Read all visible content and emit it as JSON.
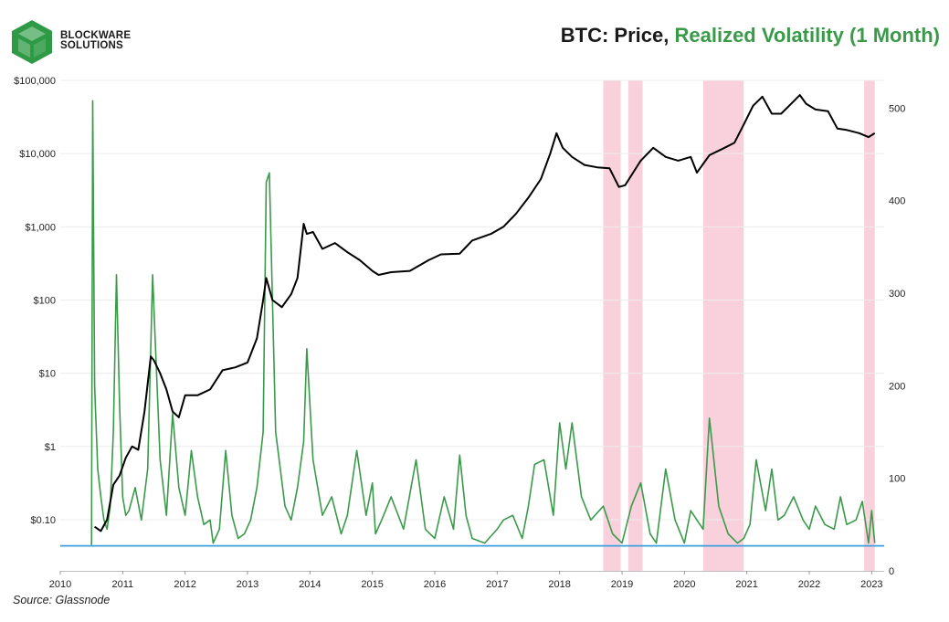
{
  "brand": {
    "line1": "BLOCKWARE",
    "line2": "SOLUTIONS",
    "logo_color": "#2f9a45"
  },
  "header": {
    "title_part1": "BTC: Price, ",
    "title_part2": "Realized Volatility (1 Month)"
  },
  "footer": {
    "source": "Source: Glassnode"
  },
  "colors": {
    "price": "#000000",
    "volatility": "#3a9a4a",
    "threshold": "#3aa0e0",
    "shade": "#f7c6d3"
  },
  "chart_data": {
    "type": "line",
    "title": "BTC: Price, Realized Volatility (1 Month)",
    "xlim": [
      2010,
      2023.2
    ],
    "x_ticks": [
      2010,
      2011,
      2012,
      2013,
      2014,
      2015,
      2016,
      2017,
      2018,
      2019,
      2020,
      2021,
      2022,
      2023
    ],
    "x_tick_labels": [
      "2010",
      "2011",
      "2012",
      "2013",
      "2014",
      "2015",
      "2016",
      "2017",
      "2018",
      "2019",
      "2020",
      "2021",
      "2022",
      "2023"
    ],
    "y_left": {
      "scale": "log",
      "ylim": [
        0.02,
        100000
      ],
      "ticks": [
        0.1,
        1,
        10,
        100,
        1000,
        10000,
        100000
      ],
      "tick_labels": [
        "$0.10",
        "$1",
        "$10",
        "$100",
        "$1,000",
        "$10,000",
        "$100,000"
      ]
    },
    "y_right": {
      "scale": "linear",
      "ylim": [
        0,
        530
      ],
      "ticks": [
        0,
        100,
        200,
        300,
        400,
        500
      ],
      "tick_labels": [
        "0",
        "100",
        "200",
        "300",
        "400",
        "500"
      ]
    },
    "shaded_periods": [
      [
        2018.7,
        2018.98
      ],
      [
        2019.1,
        2019.33
      ],
      [
        2020.3,
        2020.95
      ],
      [
        2022.88,
        2023.05
      ]
    ],
    "threshold_line": {
      "axis": "right",
      "value": 27
    },
    "series": [
      {
        "name": "Price",
        "axis": "left",
        "x": [
          2010.55,
          2010.65,
          2010.75,
          2010.85,
          2010.95,
          2011.05,
          2011.15,
          2011.25,
          2011.35,
          2011.45,
          2011.5,
          2011.6,
          2011.7,
          2011.8,
          2011.9,
          2012.0,
          2012.2,
          2012.4,
          2012.6,
          2012.8,
          2013.0,
          2013.15,
          2013.25,
          2013.3,
          2013.4,
          2013.55,
          2013.7,
          2013.8,
          2013.9,
          2013.95,
          2014.05,
          2014.2,
          2014.4,
          2014.6,
          2014.8,
          2015.0,
          2015.1,
          2015.3,
          2015.6,
          2015.9,
          2016.1,
          2016.4,
          2016.6,
          2016.9,
          2017.1,
          2017.3,
          2017.5,
          2017.7,
          2017.85,
          2017.95,
          2018.05,
          2018.2,
          2018.4,
          2018.6,
          2018.8,
          2018.95,
          2019.05,
          2019.3,
          2019.5,
          2019.7,
          2019.9,
          2020.1,
          2020.2,
          2020.4,
          2020.6,
          2020.8,
          2020.95,
          2021.1,
          2021.25,
          2021.4,
          2021.55,
          2021.7,
          2021.85,
          2021.95,
          2022.1,
          2022.3,
          2022.45,
          2022.6,
          2022.8,
          2022.95,
          2023.05
        ],
        "values": [
          0.08,
          0.07,
          0.1,
          0.3,
          0.4,
          0.7,
          1.0,
          0.9,
          3,
          17,
          15,
          10,
          6,
          3,
          2.5,
          5,
          5,
          6,
          11,
          12,
          14,
          30,
          100,
          200,
          100,
          80,
          120,
          200,
          1100,
          800,
          850,
          500,
          600,
          450,
          350,
          250,
          220,
          240,
          250,
          350,
          420,
          430,
          650,
          800,
          1000,
          1500,
          2500,
          4500,
          10000,
          19000,
          12000,
          9000,
          7000,
          6500,
          6300,
          3500,
          3700,
          8000,
          12000,
          9000,
          8000,
          9000,
          5500,
          9500,
          11500,
          14000,
          25000,
          45000,
          60000,
          35000,
          35000,
          47000,
          63000,
          48000,
          40000,
          38000,
          22000,
          21000,
          19000,
          16800,
          19000
        ]
      },
      {
        "name": "Realized Volatility (1 Month)",
        "axis": "right",
        "x": [
          2010.5,
          2010.52,
          2010.55,
          2010.6,
          2010.65,
          2010.7,
          2010.75,
          2010.8,
          2010.85,
          2010.9,
          2010.95,
          2011.0,
          2011.05,
          2011.1,
          2011.2,
          2011.3,
          2011.4,
          2011.48,
          2011.52,
          2011.6,
          2011.7,
          2011.8,
          2011.9,
          2012.0,
          2012.1,
          2012.2,
          2012.3,
          2012.4,
          2012.45,
          2012.55,
          2012.65,
          2012.75,
          2012.85,
          2012.95,
          2013.05,
          2013.15,
          2013.25,
          2013.3,
          2013.35,
          2013.45,
          2013.6,
          2013.7,
          2013.8,
          2013.9,
          2013.95,
          2014.05,
          2014.2,
          2014.35,
          2014.5,
          2014.6,
          2014.75,
          2014.9,
          2015.0,
          2015.05,
          2015.15,
          2015.3,
          2015.5,
          2015.7,
          2015.85,
          2016.0,
          2016.15,
          2016.3,
          2016.4,
          2016.5,
          2016.6,
          2016.8,
          2017.0,
          2017.1,
          2017.25,
          2017.4,
          2017.5,
          2017.6,
          2017.75,
          2017.9,
          2018.0,
          2018.1,
          2018.2,
          2018.35,
          2018.5,
          2018.7,
          2018.85,
          2019.0,
          2019.15,
          2019.3,
          2019.45,
          2019.55,
          2019.7,
          2019.85,
          2020.0,
          2020.1,
          2020.2,
          2020.3,
          2020.4,
          2020.55,
          2020.7,
          2020.85,
          2020.95,
          2021.05,
          2021.15,
          2021.3,
          2021.4,
          2021.5,
          2021.6,
          2021.75,
          2021.9,
          2022.0,
          2022.1,
          2022.25,
          2022.4,
          2022.5,
          2022.6,
          2022.75,
          2022.85,
          2022.95,
          2023.0,
          2023.05
        ],
        "values": [
          28,
          508,
          200,
          110,
          80,
          55,
          45,
          70,
          150,
          320,
          180,
          80,
          60,
          65,
          90,
          55,
          110,
          320,
          250,
          120,
          60,
          170,
          90,
          60,
          130,
          80,
          50,
          55,
          30,
          45,
          130,
          60,
          35,
          40,
          55,
          90,
          150,
          420,
          430,
          150,
          70,
          55,
          90,
          140,
          240,
          120,
          60,
          80,
          40,
          60,
          130,
          60,
          95,
          40,
          55,
          80,
          45,
          120,
          45,
          35,
          80,
          45,
          125,
          60,
          35,
          30,
          45,
          55,
          60,
          35,
          70,
          115,
          120,
          60,
          160,
          110,
          160,
          80,
          55,
          70,
          40,
          30,
          70,
          95,
          40,
          30,
          110,
          55,
          30,
          65,
          55,
          45,
          165,
          70,
          40,
          30,
          35,
          50,
          120,
          65,
          110,
          55,
          60,
          80,
          55,
          45,
          70,
          50,
          45,
          80,
          50,
          55,
          75,
          30,
          65,
          30
        ]
      }
    ]
  }
}
